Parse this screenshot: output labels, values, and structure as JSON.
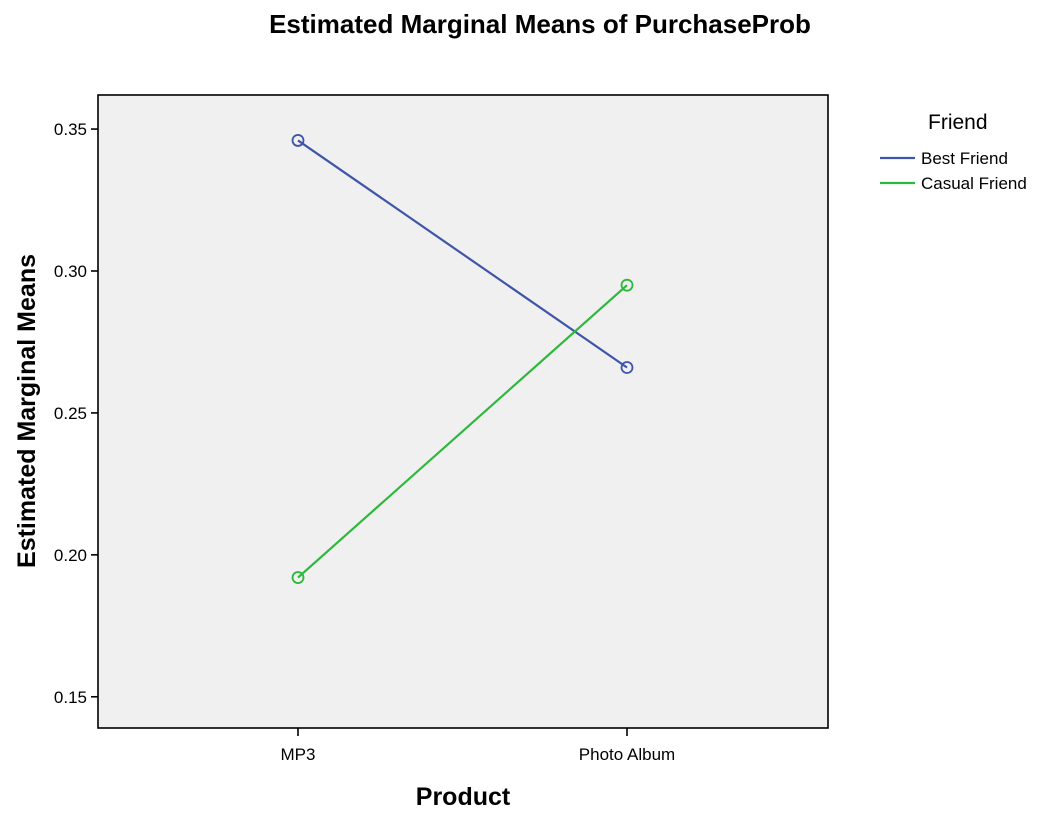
{
  "chart_data": {
    "type": "line",
    "title": "Estimated Marginal Means of PurchaseProb",
    "xlabel": "Product",
    "ylabel": "Estimated Marginal Means",
    "categories": [
      "MP3",
      "Photo Album"
    ],
    "ylim": [
      0.139,
      0.362
    ],
    "yticks": [
      0.15,
      0.2,
      0.25,
      0.3,
      0.35
    ],
    "ytick_labels": [
      "0.15",
      "0.20",
      "0.25",
      "0.30",
      "0.35"
    ],
    "grid": false,
    "legend": {
      "title": "Friend",
      "placement": "right"
    },
    "series": [
      {
        "name": "Best Friend",
        "values": [
          0.346,
          0.266
        ],
        "color": "#3f55a8",
        "marker": "open-circle"
      },
      {
        "name": "Casual Friend",
        "values": [
          0.192,
          0.295
        ],
        "color": "#2db83d",
        "marker": "open-circle"
      }
    ],
    "plot_background": "#f0f0f0"
  }
}
